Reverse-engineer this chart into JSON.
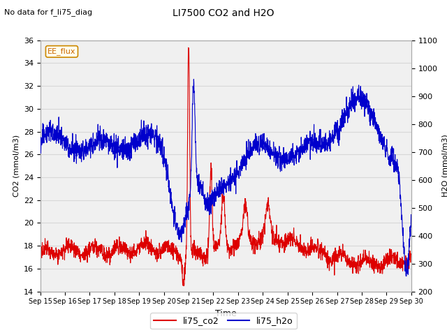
{
  "title": "LI7500 CO2 and H2O",
  "subtitle": "No data for f_li75_diag",
  "xlabel": "Time",
  "ylabel_left": "CO2 (mmol/m3)",
  "ylabel_right": "H2O (mmol/m3)",
  "ylim_left": [
    14,
    36
  ],
  "ylim_right": [
    200,
    1100
  ],
  "yticks_left": [
    14,
    16,
    18,
    20,
    22,
    24,
    26,
    28,
    30,
    32,
    34,
    36
  ],
  "yticks_right": [
    200,
    300,
    400,
    500,
    600,
    700,
    800,
    900,
    1000,
    1100
  ],
  "xtick_labels": [
    "Sep 15",
    "Sep 16",
    "Sep 17",
    "Sep 18",
    "Sep 19",
    "Sep 20",
    "Sep 21",
    "Sep 22",
    "Sep 23",
    "Sep 24",
    "Sep 25",
    "Sep 26",
    "Sep 27",
    "Sep 28",
    "Sep 29",
    "Sep 30"
  ],
  "annotation_box": "EE_flux",
  "co2_color": "#dd0000",
  "h2o_color": "#0000cc",
  "background_color": "#ffffff",
  "plot_bg_color": "#f0f0f0",
  "grid_color": "#d8d8d8",
  "legend_labels": [
    "li75_co2",
    "li75_h2o"
  ]
}
